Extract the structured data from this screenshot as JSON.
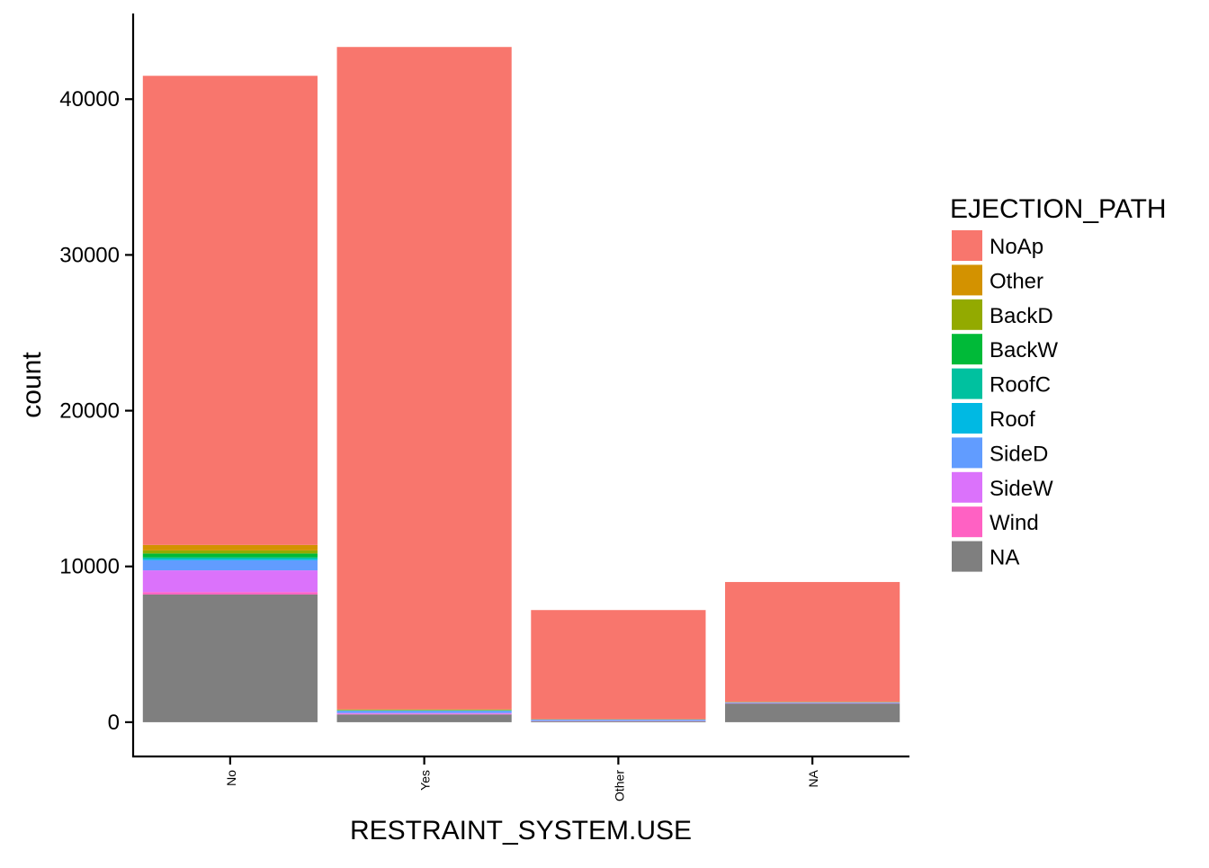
{
  "chart_data": {
    "type": "bar",
    "stacked": true,
    "title": "",
    "xlabel": "RESTRAINT_SYSTEM.USE",
    "ylabel": "count",
    "ylim": [
      -2200,
      45500
    ],
    "y_ticks": [
      0,
      10000,
      20000,
      30000,
      40000
    ],
    "grid": false,
    "legend_position": "right",
    "legend_title": "EJECTION_PATH",
    "categories": [
      "No",
      "Yes",
      "Other",
      "NA"
    ],
    "series": [
      {
        "name": "NA",
        "color": "#7f7f7f",
        "values": [
          8200,
          500,
          60,
          1200
        ]
      },
      {
        "name": "Wind",
        "color": "#ff61c3",
        "values": [
          150,
          30,
          10,
          10
        ]
      },
      {
        "name": "SideW",
        "color": "#db72fb",
        "values": [
          1400,
          60,
          20,
          20
        ]
      },
      {
        "name": "SideD",
        "color": "#619cff",
        "values": [
          650,
          140,
          70,
          30
        ]
      },
      {
        "name": "Roof",
        "color": "#00b9e3",
        "values": [
          80,
          10,
          5,
          5
        ]
      },
      {
        "name": "RoofC",
        "color": "#00c19f",
        "values": [
          100,
          10,
          5,
          5
        ]
      },
      {
        "name": "BackW",
        "color": "#00ba38",
        "values": [
          250,
          20,
          5,
          10
        ]
      },
      {
        "name": "BackD",
        "color": "#93aa00",
        "values": [
          200,
          20,
          5,
          10
        ]
      },
      {
        "name": "Other",
        "color": "#d39200",
        "values": [
          350,
          30,
          10,
          10
        ]
      },
      {
        "name": "NoAp",
        "color": "#f8766d",
        "values": [
          30120,
          42530,
          7010,
          7700
        ]
      }
    ],
    "legend_order": [
      "NoAp",
      "Other",
      "BackD",
      "BackW",
      "RoofC",
      "Roof",
      "SideD",
      "SideW",
      "Wind",
      "NA"
    ]
  }
}
